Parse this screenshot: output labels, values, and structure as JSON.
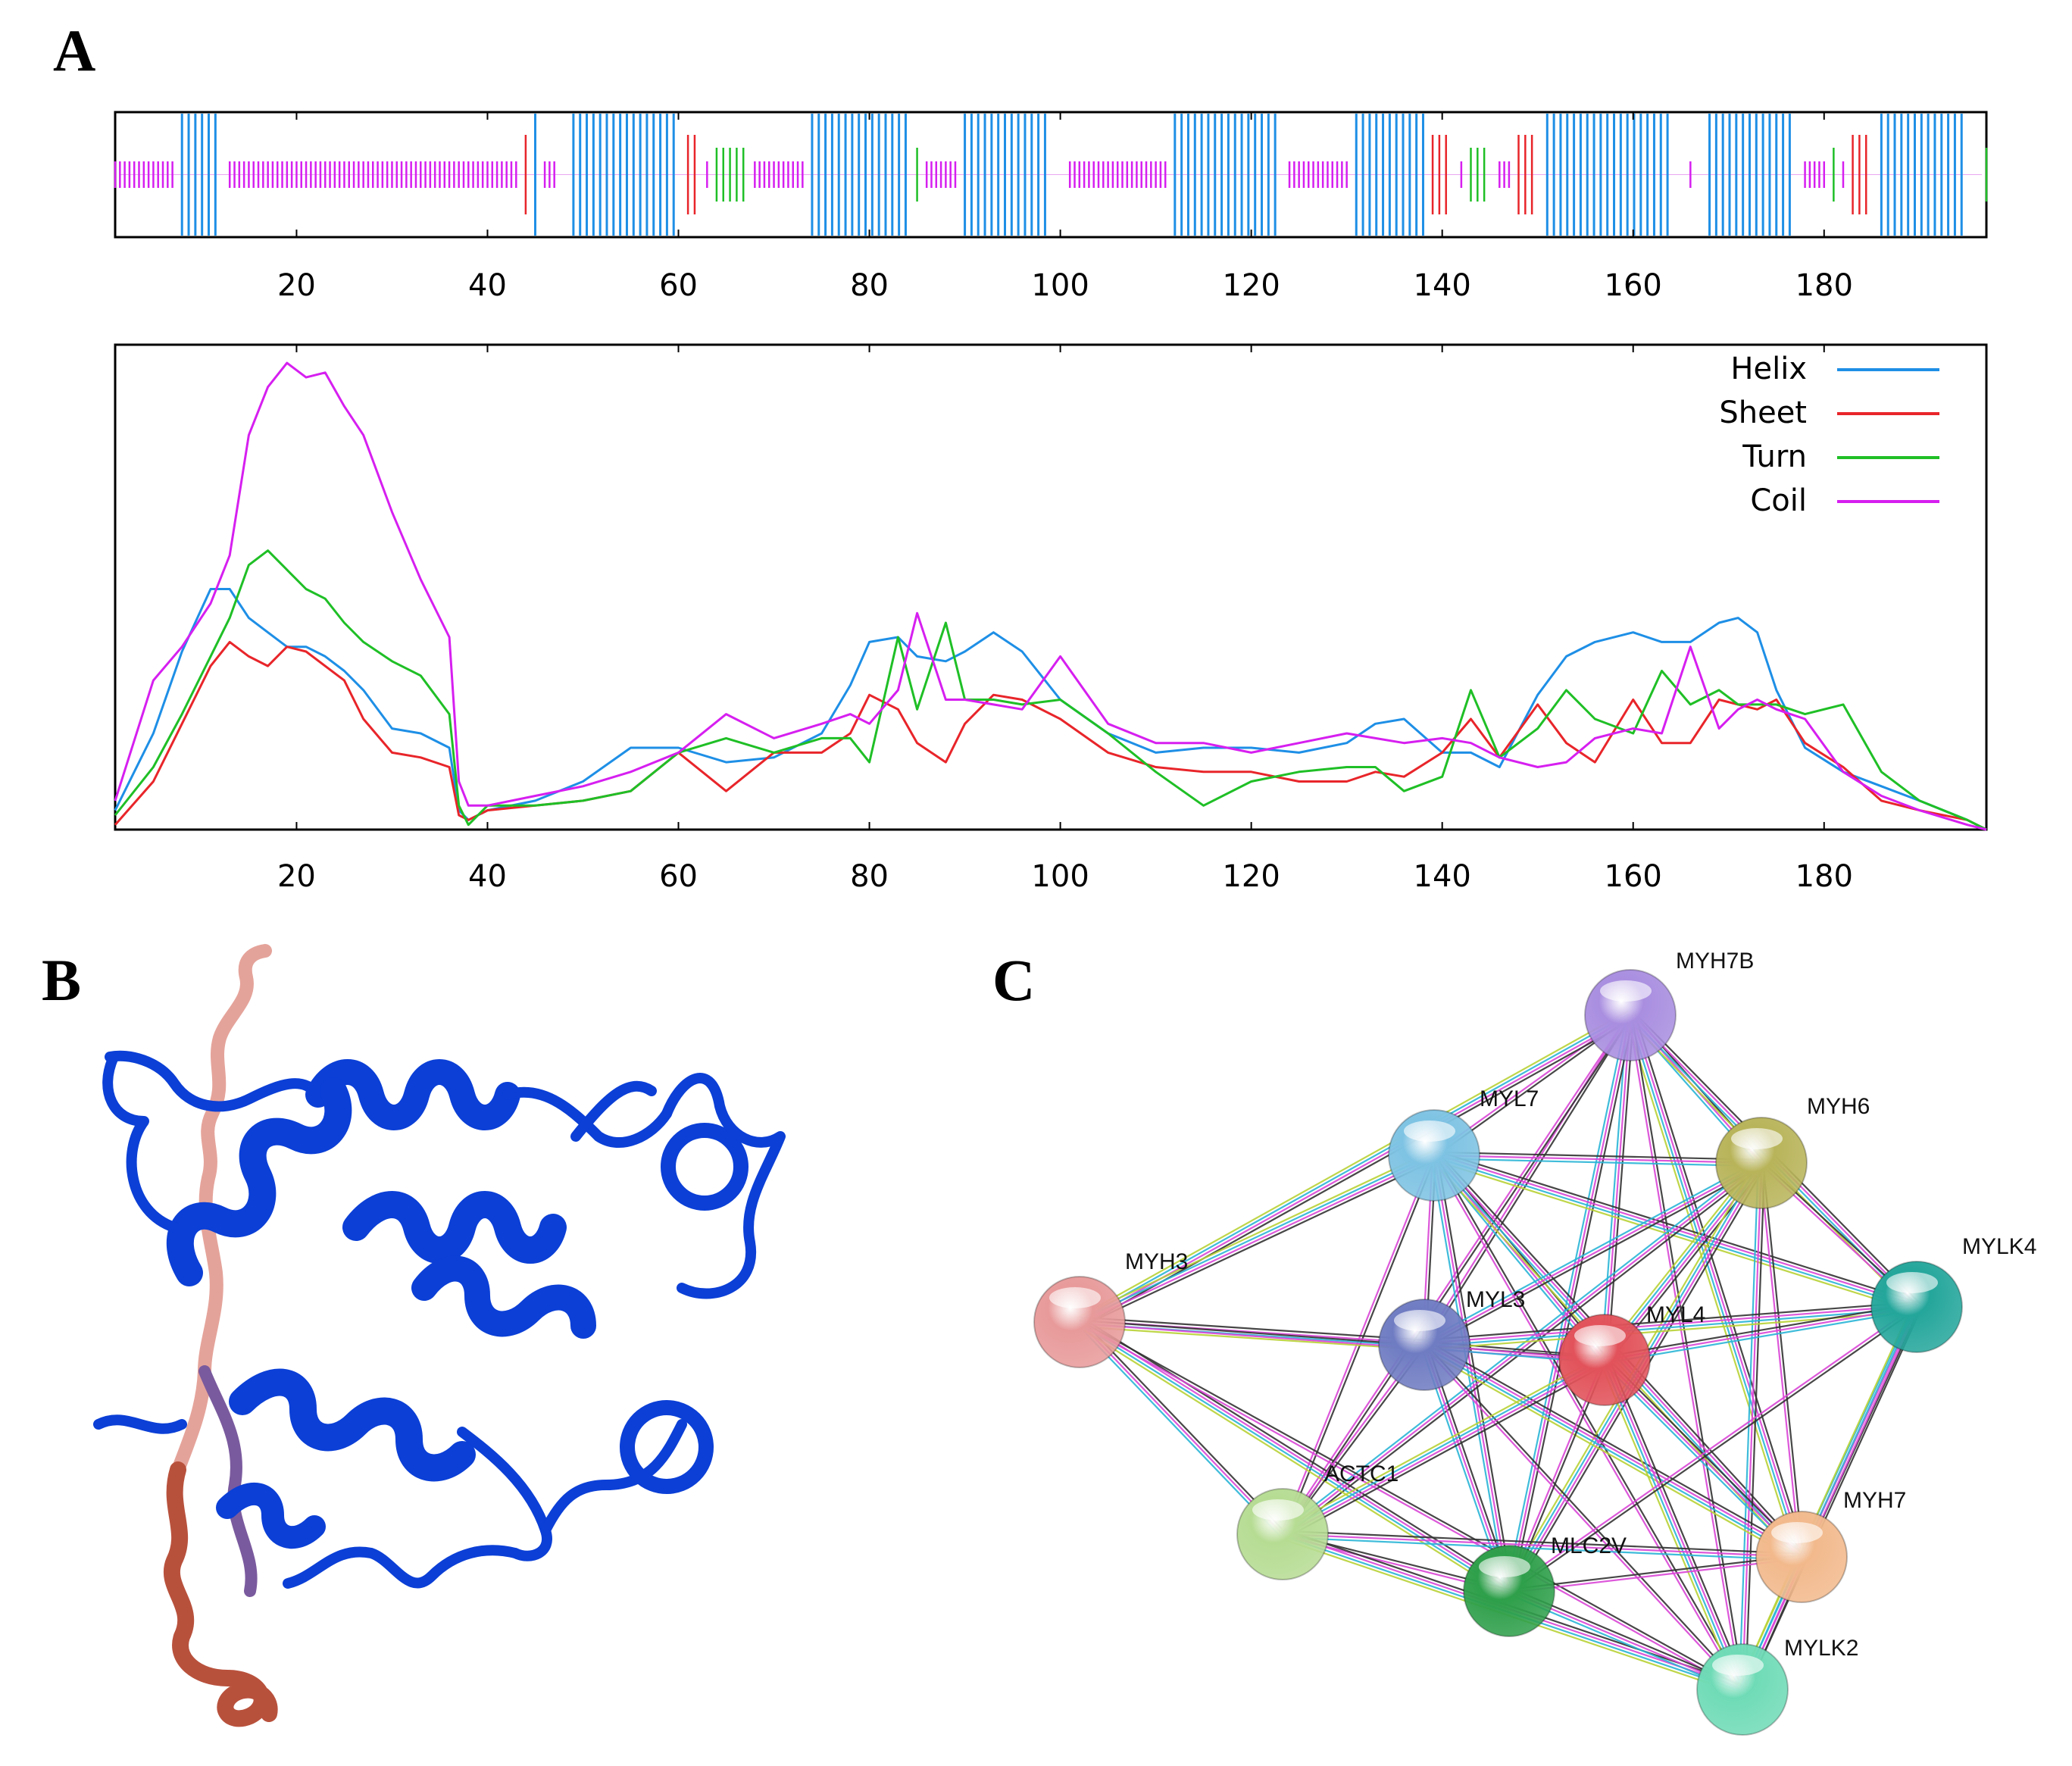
{
  "panels": {
    "a_label": "A",
    "b_label": "B",
    "c_label": "C"
  },
  "chart_data": [
    {
      "type": "bar",
      "name": "secondary-structure-track",
      "title": "",
      "x_range": [
        1,
        197
      ],
      "xticks": [
        "20",
        "40",
        "60",
        "80",
        "100",
        "120",
        "140",
        "160",
        "180"
      ],
      "segments": [
        {
          "type": "coil",
          "start": 1,
          "end": 7
        },
        {
          "type": "helix",
          "start": 8,
          "end": 12
        },
        {
          "type": "coil",
          "start": 13,
          "end": 43
        },
        {
          "type": "sheet",
          "start": 44,
          "end": 44
        },
        {
          "type": "helix",
          "start": 45,
          "end": 45
        },
        {
          "type": "coil",
          "start": 46,
          "end": 47
        },
        {
          "type": "helix",
          "start": 49,
          "end": 60
        },
        {
          "type": "sheet",
          "start": 61,
          "end": 62
        },
        {
          "type": "coil",
          "start": 63,
          "end": 63
        },
        {
          "type": "turn",
          "start": 64,
          "end": 67
        },
        {
          "type": "coil",
          "start": 68,
          "end": 73
        },
        {
          "type": "helix",
          "start": 74,
          "end": 84
        },
        {
          "type": "turn",
          "start": 85,
          "end": 85
        },
        {
          "type": "coil",
          "start": 86,
          "end": 89
        },
        {
          "type": "helix",
          "start": 90,
          "end": 99
        },
        {
          "type": "coil",
          "start": 101,
          "end": 111
        },
        {
          "type": "helix",
          "start": 112,
          "end": 123
        },
        {
          "type": "coil",
          "start": 124,
          "end": 130
        },
        {
          "type": "helix",
          "start": 131,
          "end": 138
        },
        {
          "type": "sheet",
          "start": 139,
          "end": 141
        },
        {
          "type": "coil",
          "start": 142,
          "end": 142
        },
        {
          "type": "turn",
          "start": 143,
          "end": 145
        },
        {
          "type": "coil",
          "start": 146,
          "end": 147
        },
        {
          "type": "sheet",
          "start": 148,
          "end": 150
        },
        {
          "type": "helix",
          "start": 151,
          "end": 164
        },
        {
          "type": "coil",
          "start": 166,
          "end": 166
        },
        {
          "type": "helix",
          "start": 168,
          "end": 177
        },
        {
          "type": "coil",
          "start": 178,
          "end": 180
        },
        {
          "type": "turn",
          "start": 181,
          "end": 181
        },
        {
          "type": "coil",
          "start": 182,
          "end": 182
        },
        {
          "type": "sheet",
          "start": 183,
          "end": 185
        },
        {
          "type": "helix",
          "start": 186,
          "end": 195
        },
        {
          "type": "turn",
          "start": 197,
          "end": 197
        }
      ]
    },
    {
      "type": "line",
      "name": "secondary-structure-probability",
      "title": "",
      "xlabel": "",
      "ylabel": "",
      "x_range": [
        1,
        197
      ],
      "ylim": [
        0,
        1
      ],
      "xticks": [
        "20",
        "40",
        "60",
        "80",
        "100",
        "120",
        "140",
        "160",
        "180"
      ],
      "legend_position": "top-right",
      "series": [
        {
          "name": "Helix",
          "color": "#1e8fe6",
          "x": [
            1,
            5,
            8,
            11,
            13,
            15,
            17,
            19,
            21,
            23,
            25,
            27,
            30,
            33,
            36,
            37,
            38,
            40,
            45,
            50,
            55,
            60,
            65,
            70,
            75,
            78,
            80,
            83,
            85,
            88,
            90,
            93,
            96,
            100,
            105,
            110,
            115,
            120,
            125,
            130,
            133,
            136,
            140,
            143,
            146,
            150,
            153,
            156,
            160,
            163,
            166,
            169,
            171,
            173,
            175,
            178,
            182,
            186,
            190,
            195,
            197
          ],
          "values": [
            0.04,
            0.2,
            0.37,
            0.5,
            0.5,
            0.44,
            0.41,
            0.38,
            0.38,
            0.36,
            0.33,
            0.29,
            0.21,
            0.2,
            0.17,
            0.04,
            0.02,
            0.04,
            0.06,
            0.1,
            0.17,
            0.17,
            0.14,
            0.15,
            0.2,
            0.3,
            0.39,
            0.4,
            0.36,
            0.35,
            0.37,
            0.41,
            0.37,
            0.27,
            0.2,
            0.16,
            0.17,
            0.17,
            0.16,
            0.18,
            0.22,
            0.23,
            0.16,
            0.16,
            0.13,
            0.28,
            0.36,
            0.39,
            0.41,
            0.39,
            0.39,
            0.43,
            0.44,
            0.41,
            0.29,
            0.17,
            0.12,
            0.09,
            0.06,
            0.02,
            0.0
          ]
        },
        {
          "name": "Sheet",
          "color": "#e8252a",
          "x": [
            1,
            5,
            8,
            11,
            13,
            15,
            17,
            19,
            21,
            23,
            25,
            27,
            30,
            33,
            36,
            37,
            38,
            40,
            45,
            50,
            55,
            60,
            65,
            70,
            75,
            78,
            80,
            83,
            85,
            88,
            90,
            93,
            96,
            100,
            105,
            110,
            115,
            120,
            125,
            130,
            133,
            136,
            140,
            143,
            146,
            150,
            153,
            156,
            160,
            163,
            166,
            169,
            171,
            173,
            175,
            178,
            182,
            186,
            190,
            195,
            197
          ],
          "values": [
            0.01,
            0.1,
            0.22,
            0.34,
            0.39,
            0.36,
            0.34,
            0.38,
            0.37,
            0.34,
            0.31,
            0.23,
            0.16,
            0.15,
            0.13,
            0.03,
            0.02,
            0.04,
            0.05,
            0.06,
            0.08,
            0.16,
            0.08,
            0.16,
            0.16,
            0.2,
            0.28,
            0.25,
            0.18,
            0.14,
            0.22,
            0.28,
            0.27,
            0.23,
            0.16,
            0.13,
            0.12,
            0.12,
            0.1,
            0.1,
            0.12,
            0.11,
            0.16,
            0.23,
            0.15,
            0.26,
            0.18,
            0.14,
            0.27,
            0.18,
            0.18,
            0.27,
            0.26,
            0.25,
            0.27,
            0.18,
            0.13,
            0.06,
            0.04,
            0.02,
            0.0
          ]
        },
        {
          "name": "Turn",
          "color": "#1fbf26",
          "x": [
            1,
            5,
            8,
            11,
            13,
            15,
            17,
            19,
            21,
            23,
            25,
            27,
            30,
            33,
            36,
            37,
            38,
            40,
            45,
            50,
            55,
            60,
            65,
            70,
            75,
            78,
            80,
            83,
            85,
            88,
            90,
            93,
            96,
            100,
            105,
            110,
            115,
            120,
            125,
            130,
            133,
            136,
            140,
            143,
            146,
            150,
            153,
            156,
            160,
            163,
            166,
            169,
            171,
            173,
            175,
            178,
            182,
            186,
            190,
            195,
            197
          ],
          "values": [
            0.03,
            0.13,
            0.24,
            0.36,
            0.44,
            0.55,
            0.58,
            0.54,
            0.5,
            0.48,
            0.43,
            0.39,
            0.35,
            0.32,
            0.24,
            0.05,
            0.01,
            0.05,
            0.05,
            0.06,
            0.08,
            0.16,
            0.19,
            0.16,
            0.19,
            0.19,
            0.14,
            0.4,
            0.25,
            0.43,
            0.27,
            0.27,
            0.26,
            0.27,
            0.2,
            0.12,
            0.05,
            0.1,
            0.12,
            0.13,
            0.13,
            0.08,
            0.11,
            0.29,
            0.15,
            0.21,
            0.29,
            0.23,
            0.2,
            0.33,
            0.26,
            0.29,
            0.26,
            0.26,
            0.26,
            0.24,
            0.26,
            0.12,
            0.06,
            0.02,
            0.0
          ]
        },
        {
          "name": "Coil",
          "color": "#d61ff0",
          "x": [
            1,
            5,
            8,
            11,
            13,
            15,
            17,
            19,
            21,
            23,
            25,
            27,
            30,
            33,
            36,
            37,
            38,
            40,
            45,
            50,
            55,
            60,
            65,
            70,
            75,
            78,
            80,
            83,
            85,
            88,
            90,
            93,
            96,
            100,
            105,
            110,
            115,
            120,
            125,
            130,
            133,
            136,
            140,
            143,
            146,
            150,
            153,
            156,
            160,
            163,
            166,
            169,
            171,
            173,
            175,
            178,
            182,
            186,
            190,
            195,
            197
          ],
          "values": [
            0.06,
            0.31,
            0.38,
            0.47,
            0.57,
            0.82,
            0.92,
            0.97,
            0.94,
            0.95,
            0.88,
            0.82,
            0.66,
            0.52,
            0.4,
            0.1,
            0.05,
            0.05,
            0.07,
            0.09,
            0.12,
            0.16,
            0.24,
            0.19,
            0.22,
            0.24,
            0.22,
            0.29,
            0.45,
            0.27,
            0.27,
            0.26,
            0.25,
            0.36,
            0.22,
            0.18,
            0.18,
            0.16,
            0.18,
            0.2,
            0.19,
            0.18,
            0.19,
            0.18,
            0.15,
            0.13,
            0.14,
            0.19,
            0.21,
            0.2,
            0.38,
            0.21,
            0.25,
            0.27,
            0.25,
            0.23,
            0.12,
            0.07,
            0.04,
            0.01,
            0.0
          ]
        }
      ]
    }
  ],
  "network": {
    "nodes": [
      {
        "label": "MYH7B",
        "color": "#a98ee0"
      },
      {
        "label": "MYL7",
        "color": "#7ec3e3"
      },
      {
        "label": "MYH6",
        "color": "#b8b45a"
      },
      {
        "label": "MYH3",
        "color": "#e89a9a"
      },
      {
        "label": "MYL3",
        "color": "#6f7cc2"
      },
      {
        "label": "MYL4",
        "color": "#e2525a"
      },
      {
        "label": "MYLK4",
        "color": "#24a69b"
      },
      {
        "label": "ACTC1",
        "color": "#b6dc93"
      },
      {
        "label": "MLC2V",
        "color": "#2e9f4a"
      },
      {
        "label": "MYH7",
        "color": "#f2b98c"
      },
      {
        "label": "MYLK2",
        "color": "#6fdbb6"
      }
    ],
    "edge_colors": [
      "#333333",
      "#d946d6",
      "#2ab5d6",
      "#b8d235",
      "#9aa7ee"
    ]
  }
}
